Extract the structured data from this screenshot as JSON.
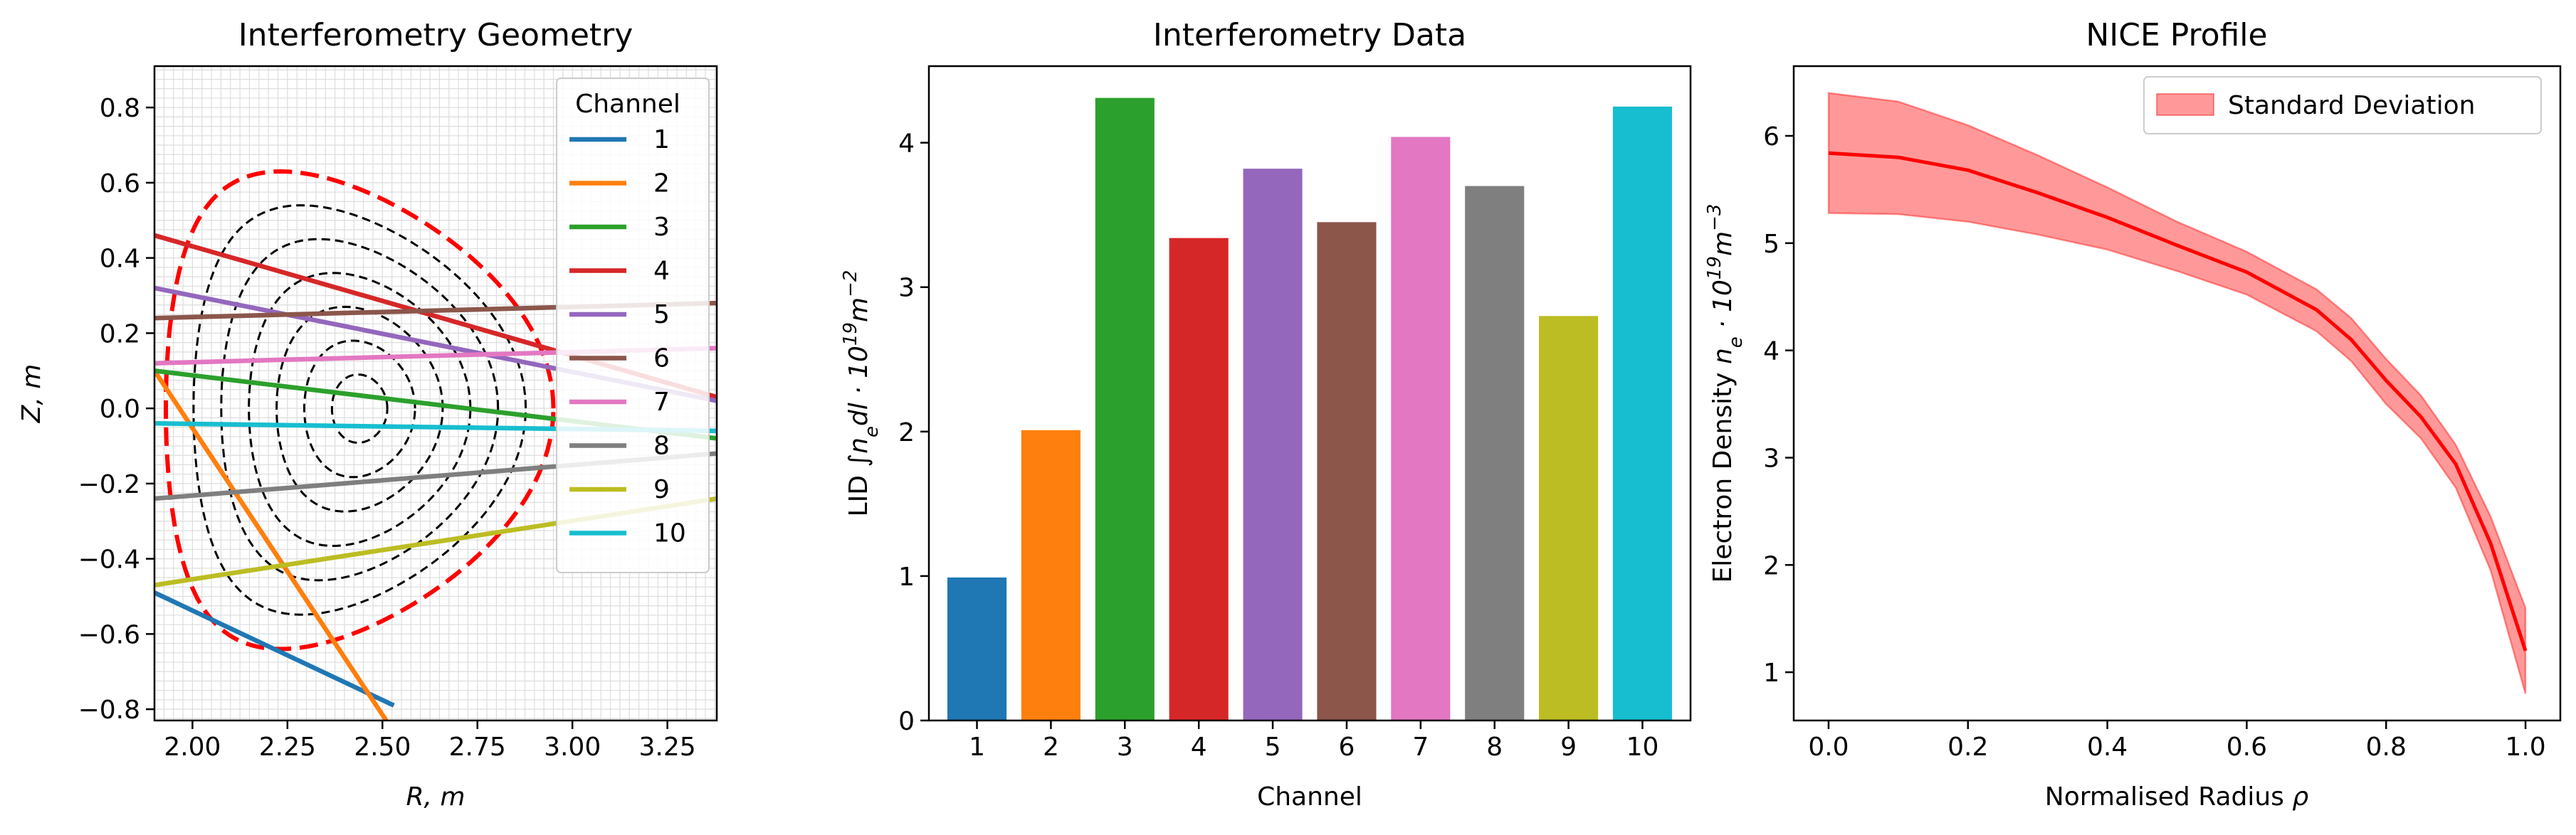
{
  "chart_data": [
    {
      "type": "line",
      "title": "Interferometry Geometry",
      "xlabel": "R, m",
      "ylabel": "Z, m",
      "xlim": [
        1.9,
        3.38
      ],
      "ylim": [
        -0.83,
        0.91
      ],
      "xticks": [
        "2.00",
        "2.25",
        "2.50",
        "2.75",
        "3.00",
        "3.25"
      ],
      "yticks": [
        "0.8",
        "0.6",
        "0.4",
        "0.2",
        "0.0",
        "−0.2",
        "−0.4",
        "−0.6",
        "−0.8"
      ],
      "grid": true,
      "legend_title": "Channel",
      "legend_position": "top-right",
      "series": [
        {
          "name": "1",
          "color": "#1f77b4",
          "x": [
            1.9,
            2.53
          ],
          "y": [
            -0.49,
            -0.79
          ]
        },
        {
          "name": "2",
          "color": "#ff7f0e",
          "x": [
            1.9,
            2.51
          ],
          "y": [
            0.1,
            -0.83
          ]
        },
        {
          "name": "3",
          "color": "#2ca02c",
          "x": [
            1.9,
            3.38
          ],
          "y": [
            0.1,
            -0.08
          ]
        },
        {
          "name": "4",
          "color": "#d62728",
          "x": [
            1.9,
            3.38
          ],
          "y": [
            0.46,
            0.03
          ]
        },
        {
          "name": "5",
          "color": "#9467bd",
          "x": [
            1.9,
            3.38
          ],
          "y": [
            0.32,
            0.02
          ]
        },
        {
          "name": "6",
          "color": "#8c564b",
          "x": [
            1.9,
            3.38
          ],
          "y": [
            0.24,
            0.28
          ]
        },
        {
          "name": "7",
          "color": "#e377c2",
          "x": [
            1.9,
            3.38
          ],
          "y": [
            0.12,
            0.16
          ]
        },
        {
          "name": "8",
          "color": "#7f7f7f",
          "x": [
            1.9,
            3.38
          ],
          "y": [
            -0.24,
            -0.12
          ]
        },
        {
          "name": "9",
          "color": "#bcbd22",
          "x": [
            1.9,
            3.38
          ],
          "y": [
            -0.47,
            -0.24
          ]
        },
        {
          "name": "10",
          "color": "#17becf",
          "x": [
            1.9,
            3.38
          ],
          "y": [
            -0.04,
            -0.06
          ]
        }
      ],
      "boundary": {
        "color": "#ff0000",
        "style": "dashed",
        "center": [
          2.44,
          0.0
        ],
        "a": 0.51,
        "top": 0.63,
        "bottom": -0.64
      },
      "flux_surfaces": {
        "color": "#000000",
        "style": "dashed",
        "count": 6
      }
    },
    {
      "type": "bar",
      "title": "Interferometry Data",
      "xlabel": "Channel",
      "ylabel_prefix": "LID",
      "ylim": [
        0,
        4.53
      ],
      "yticks": [
        "0",
        "1",
        "2",
        "3",
        "4"
      ],
      "categories": [
        "1",
        "2",
        "3",
        "4",
        "5",
        "6",
        "7",
        "8",
        "9",
        "10"
      ],
      "values": [
        0.99,
        2.01,
        4.31,
        3.34,
        3.82,
        3.45,
        4.04,
        3.7,
        2.8,
        4.25
      ],
      "colors": [
        "#1f77b4",
        "#ff7f0e",
        "#2ca02c",
        "#d62728",
        "#9467bd",
        "#8c564b",
        "#e377c2",
        "#7f7f7f",
        "#bcbd22",
        "#17becf"
      ]
    },
    {
      "type": "area",
      "title": "NICE Profile",
      "xlabel_prefix": "Normalised Radius",
      "ylabel_prefix": "Electron Density",
      "xlim": [
        -0.05,
        1.05
      ],
      "ylim": [
        0.55,
        6.65
      ],
      "xticks": [
        "0.0",
        "0.2",
        "0.4",
        "0.6",
        "0.8",
        "1.0"
      ],
      "yticks": [
        "1",
        "2",
        "3",
        "4",
        "5",
        "6"
      ],
      "legend_position": "top-right",
      "series": [
        {
          "name": "Standard Deviation",
          "color": "#ff0000",
          "x": [
            0.0,
            0.1,
            0.2,
            0.3,
            0.4,
            0.5,
            0.6,
            0.7,
            0.75,
            0.8,
            0.85,
            0.9,
            0.95,
            1.0
          ],
          "mean": [
            5.84,
            5.8,
            5.68,
            5.47,
            5.24,
            4.98,
            4.73,
            4.38,
            4.1,
            3.72,
            3.38,
            2.94,
            2.2,
            1.2
          ],
          "upper": [
            6.4,
            6.32,
            6.1,
            5.82,
            5.52,
            5.2,
            4.92,
            4.57,
            4.3,
            3.92,
            3.58,
            3.12,
            2.45,
            1.6
          ],
          "lower": [
            5.28,
            5.27,
            5.2,
            5.08,
            4.94,
            4.74,
            4.52,
            4.18,
            3.9,
            3.5,
            3.18,
            2.72,
            1.95,
            0.8
          ]
        }
      ]
    }
  ]
}
